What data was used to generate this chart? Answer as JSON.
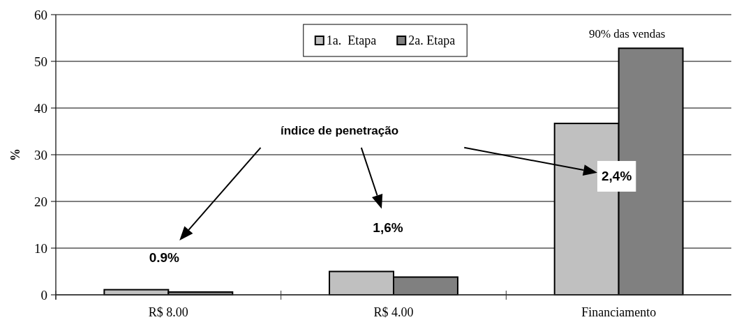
{
  "chart_data": {
    "type": "bar",
    "ylabel": "%",
    "categories": [
      "R$ 8.00",
      "R$ 4.00",
      "Financiamento"
    ],
    "series": [
      {
        "name": "1a.  Etapa",
        "color": "#c0c0c0",
        "values": [
          1.1,
          5.0,
          36.7
        ]
      },
      {
        "name": "2a. Etapa",
        "color": "#808080",
        "values": [
          0.6,
          3.8,
          52.8
        ]
      }
    ],
    "ylim": [
      0,
      60
    ],
    "yticks": [
      0,
      10,
      20,
      30,
      40,
      50,
      60
    ],
    "grid": "y",
    "legend": "top",
    "annotations": [
      "índice de penetração",
      "0.9%",
      "1,6%",
      "2,4%",
      "90% das vendas"
    ]
  }
}
